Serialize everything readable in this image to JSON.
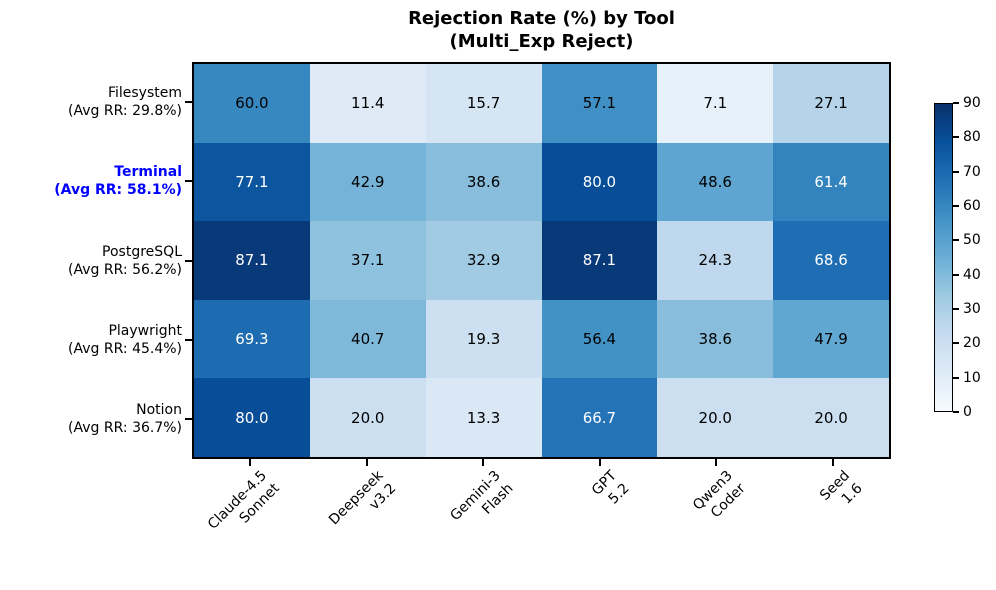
{
  "title": {
    "line1": "Rejection Rate (%) by Tool",
    "line2": "(Multi_Exp Reject)"
  },
  "chart_data": {
    "type": "heatmap",
    "title": "Rejection Rate (%) by Tool (Multi_Exp Reject)",
    "value_unit": "percent",
    "columns": [
      {
        "line1": "Claude-4.5",
        "line2": "Sonnet"
      },
      {
        "line1": "Deepseek",
        "line2": "v3.2"
      },
      {
        "line1": "Gemini-3",
        "line2": "Flash"
      },
      {
        "line1": "GPT",
        "line2": "5.2"
      },
      {
        "line1": "Qwen3",
        "line2": "Coder"
      },
      {
        "line1": "Seed",
        "line2": "1.6"
      }
    ],
    "rows": [
      {
        "tool": "Filesystem",
        "avg_label": "(Avg RR: 29.8%)",
        "highlight": false,
        "values": [
          60.0,
          11.4,
          15.7,
          57.1,
          7.1,
          27.1
        ]
      },
      {
        "tool": "Terminal",
        "avg_label": "(Avg RR: 58.1%)",
        "highlight": true,
        "values": [
          77.1,
          42.9,
          38.6,
          80.0,
          48.6,
          61.4
        ]
      },
      {
        "tool": "PostgreSQL",
        "avg_label": "(Avg RR: 56.2%)",
        "highlight": false,
        "values": [
          87.1,
          37.1,
          32.9,
          87.1,
          24.3,
          68.6
        ]
      },
      {
        "tool": "Playwright",
        "avg_label": "(Avg RR: 45.4%)",
        "highlight": false,
        "values": [
          69.3,
          40.7,
          19.3,
          56.4,
          38.6,
          47.9
        ]
      },
      {
        "tool": "Notion",
        "avg_label": "(Avg RR: 36.7%)",
        "highlight": false,
        "values": [
          80.0,
          20.0,
          13.3,
          66.7,
          20.0,
          20.0
        ]
      }
    ],
    "colorbar": {
      "min": 0,
      "max": 90,
      "ticks": [
        0,
        10,
        20,
        30,
        40,
        50,
        60,
        70,
        80,
        90
      ],
      "colormap": "Blues",
      "gradient_stops_bottom_to_top": [
        "#f7fbff",
        "#deebf7",
        "#c6dbef",
        "#9ecae1",
        "#6baed6",
        "#4292c6",
        "#2171b5",
        "#08519c",
        "#08306b"
      ]
    },
    "colors": {
      "highlight_row_label": "#0000ff",
      "cell_text_dark": "#000000",
      "cell_text_light": "#ffffff",
      "axis": "#000000",
      "background": "#ffffff"
    }
  }
}
